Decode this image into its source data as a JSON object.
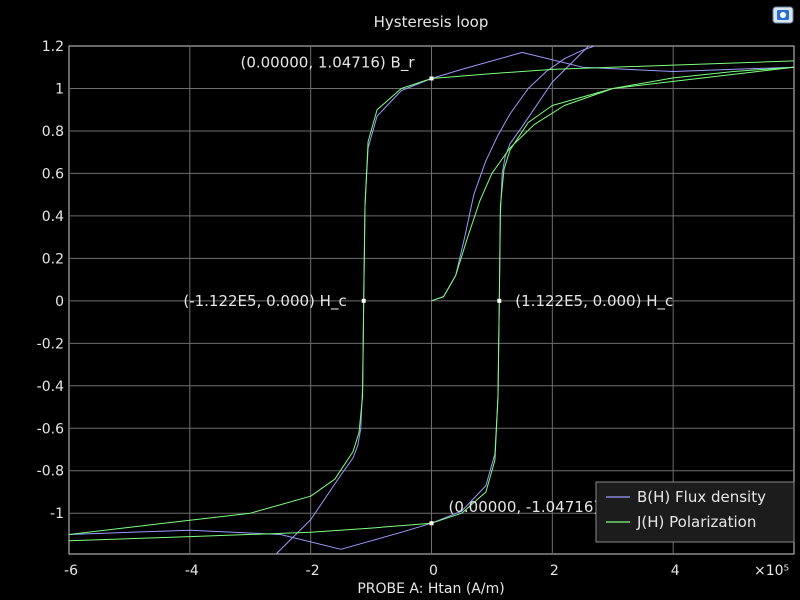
{
  "chart_data": {
    "type": "line",
    "title": "Hysteresis loop",
    "xlabel": "PROBE A: Htan (A/m)",
    "ylabel": "",
    "x_multiplier": "×10⁵",
    "xlim": [
      -6,
      6
    ],
    "ylim": [
      -1.2,
      1.2
    ],
    "x_ticks": [
      {
        "v": -6,
        "label": "-6"
      },
      {
        "v": -4,
        "label": "-4"
      },
      {
        "v": -2,
        "label": "-2"
      },
      {
        "v": 0,
        "label": "0"
      },
      {
        "v": 2,
        "label": "2"
      },
      {
        "v": 4,
        "label": "4"
      }
    ],
    "y_ticks": [
      {
        "v": 1.2,
        "label": "1.2"
      },
      {
        "v": 1.0,
        "label": "1"
      },
      {
        "v": 0.8,
        "label": "0.8"
      },
      {
        "v": 0.6,
        "label": "0.6"
      },
      {
        "v": 0.4,
        "label": "0.4"
      },
      {
        "v": 0.2,
        "label": "0.2"
      },
      {
        "v": 0,
        "label": "0"
      },
      {
        "v": -0.2,
        "label": "-0.2"
      },
      {
        "v": -0.4,
        "label": "-0.4"
      },
      {
        "v": -0.6,
        "label": "-0.6"
      },
      {
        "v": -0.8,
        "label": "-0.8"
      },
      {
        "v": -1.0,
        "label": "-1"
      }
    ],
    "grid": true,
    "legend_position": "bottom-right",
    "series": [
      {
        "name": "B(H) Flux density",
        "color": "#9b9bff",
        "segments": [
          {
            "x": [
              0,
              0.2,
              0.4,
              0.55,
              0.7,
              0.9,
              1.1,
              1.3,
              1.6,
              1.9,
              2.2,
              2.5,
              2.9,
              3.3
            ],
            "y": [
              0,
              0.02,
              0.12,
              0.3,
              0.5,
              0.66,
              0.78,
              0.88,
              1.0,
              1.08,
              1.14,
              1.18,
              1.22,
              1.26
            ]
          },
          {
            "x": [
              6,
              4,
              2.5,
              1.5,
              0.5,
              0,
              -0.5,
              -0.9,
              -1.05,
              -1.1,
              -1.122,
              -1.14,
              -1.17,
              -1.22,
              -1.3,
              -1.5,
              -2.0,
              -2.6,
              -3.2
            ],
            "y": [
              1.1,
              1.08,
              1.1,
              1.17,
              1.09,
              1.04716,
              0.99,
              0.87,
              0.72,
              0.45,
              0,
              -0.4,
              -0.6,
              -0.68,
              -0.74,
              -0.82,
              -1.03,
              -1.2,
              -1.3
            ]
          },
          {
            "x": [
              -6,
              -4,
              -2.5,
              -1.5,
              -0.5,
              0,
              0.5,
              0.9,
              1.05,
              1.1,
              1.122,
              1.14,
              1.17,
              1.22,
              1.3,
              1.5,
              2.0,
              2.6,
              3.2
            ],
            "y": [
              -1.1,
              -1.08,
              -1.1,
              -1.17,
              -1.09,
              -1.04716,
              -0.99,
              -0.87,
              -0.72,
              -0.45,
              0,
              0.4,
              0.6,
              0.68,
              0.74,
              0.82,
              1.03,
              1.2,
              1.3
            ]
          }
        ]
      },
      {
        "name": "J(H) Polarization",
        "color": "#7dff7d",
        "segments": [
          {
            "x": [
              0,
              0.2,
              0.4,
              0.6,
              0.8,
              1.0,
              1.3,
              1.7,
              2.2,
              3.0,
              4.0,
              5.0,
              6.0
            ],
            "y": [
              0,
              0.02,
              0.12,
              0.3,
              0.47,
              0.6,
              0.72,
              0.83,
              0.92,
              1.0,
              1.05,
              1.08,
              1.1
            ]
          },
          {
            "x": [
              6,
              4,
              2,
              1,
              0,
              -0.5,
              -0.9,
              -1.05,
              -1.1,
              -1.122,
              -1.14,
              -1.2,
              -1.3,
              -1.6,
              -2.0,
              -3.0,
              -4.5,
              -6.0
            ],
            "y": [
              1.13,
              1.11,
              1.09,
              1.07,
              1.04716,
              1.0,
              0.9,
              0.75,
              0.45,
              0,
              -0.45,
              -0.62,
              -0.71,
              -0.84,
              -0.92,
              -1.0,
              -1.05,
              -1.1
            ]
          },
          {
            "x": [
              -6,
              -4,
              -2,
              -1,
              0,
              0.5,
              0.9,
              1.05,
              1.1,
              1.122,
              1.14,
              1.2,
              1.3,
              1.6,
              2.0,
              3.0,
              4.5,
              6.0
            ],
            "y": [
              -1.13,
              -1.11,
              -1.09,
              -1.07,
              -1.04716,
              -1.0,
              -0.9,
              -0.75,
              -0.45,
              0,
              0.45,
              0.62,
              0.71,
              0.84,
              0.92,
              1.0,
              1.05,
              1.1
            ]
          }
        ]
      }
    ],
    "annotations": [
      {
        "x": 0,
        "y": 1.04716,
        "text": "(0.00000, 1.04716) B_r",
        "anchor": "end",
        "pos": "above-left"
      },
      {
        "x": -1.122,
        "y": 0,
        "text": "(-1.122E5, 0.000) H_c",
        "anchor": "end",
        "pos": "left"
      },
      {
        "x": 1.122,
        "y": 0,
        "text": "(1.122E5, 0.000) H_c",
        "anchor": "start",
        "pos": "right"
      },
      {
        "x": 0,
        "y": -1.04716,
        "text": "(0.00000, -1.04716) B_r",
        "anchor": "start",
        "pos": "above-right"
      }
    ]
  }
}
